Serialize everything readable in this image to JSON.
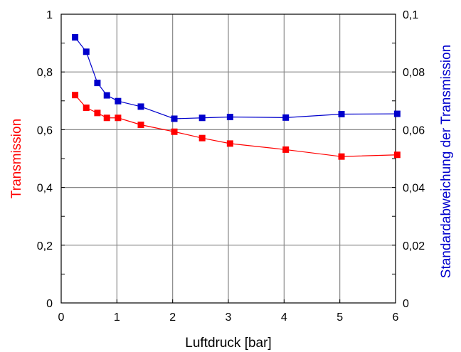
{
  "chart_data": {
    "type": "line",
    "xlabel": "Luftdruck [bar]",
    "ylabel": "Transmission",
    "y2label": "Standardabweichung der Transmission",
    "xlim": [
      0,
      6
    ],
    "ylim": [
      0,
      1
    ],
    "y2lim": [
      0,
      0.1
    ],
    "grid": true,
    "x_ticks": [
      "0",
      "1",
      "2",
      "3",
      "4",
      "5",
      "6"
    ],
    "y_ticks": [
      "0",
      "0,2",
      "0,4",
      "0,6",
      "0,8",
      "1"
    ],
    "y2_ticks": [
      "0",
      "0,02",
      "0,04",
      "0,06",
      "0,08",
      "0,1"
    ],
    "colors": {
      "transmission": "#ff0000",
      "std": "#0000cc"
    },
    "series": [
      {
        "axis": "left",
        "color": "#ff0000",
        "marker": "square",
        "x": [
          0.25,
          0.45,
          0.65,
          0.82,
          1.02,
          1.43,
          2.03,
          2.53,
          3.03,
          4.03,
          5.03,
          6.03
        ],
        "y": [
          0.72,
          0.676,
          0.658,
          0.641,
          0.641,
          0.617,
          0.593,
          0.571,
          0.552,
          0.531,
          0.507,
          0.513
        ]
      },
      {
        "axis": "right",
        "color": "#0000cc",
        "marker": "square",
        "x": [
          0.25,
          0.45,
          0.65,
          0.82,
          1.02,
          1.43,
          2.03,
          2.53,
          3.03,
          4.03,
          5.03,
          6.03
        ],
        "y": [
          0.092,
          0.087,
          0.0762,
          0.0719,
          0.0699,
          0.068,
          0.0638,
          0.0641,
          0.0644,
          0.0642,
          0.0654,
          0.0655
        ]
      }
    ]
  }
}
